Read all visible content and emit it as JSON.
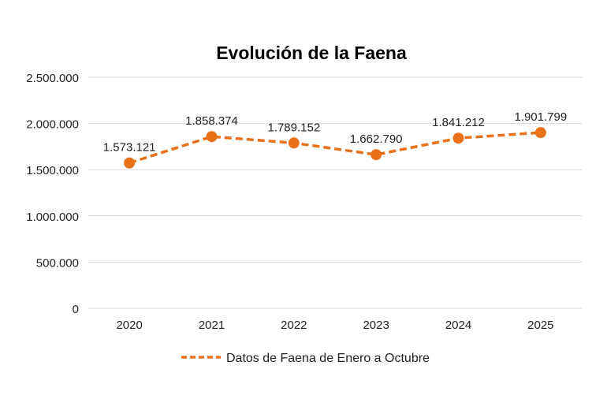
{
  "chart_data": {
    "type": "line",
    "title": "Evolución de la Faena",
    "xlabel": "",
    "ylabel": "",
    "categories": [
      "2020",
      "2021",
      "2022",
      "2023",
      "2024",
      "2025"
    ],
    "series": [
      {
        "name": "Datos de Faena de Enero a Octubre",
        "values": [
          1573121,
          1858374,
          1789152,
          1662790,
          1841212,
          1901799
        ],
        "data_labels": [
          "1.573.121",
          "1.858.374",
          "1.789.152",
          "1.662.790",
          "1.841.212",
          "1.901.799"
        ],
        "color": "#E8711A",
        "line_style": "dashed",
        "marker": "circle"
      }
    ],
    "ylim": [
      0,
      2500000
    ],
    "yticks": [
      0,
      500000,
      1000000,
      1500000,
      2000000,
      2500000
    ],
    "ytick_labels": [
      "0",
      "500.000",
      "1.000.000",
      "1.500.000",
      "2.000.000",
      "2.500.000"
    ],
    "grid": true,
    "legend": "bottom"
  }
}
